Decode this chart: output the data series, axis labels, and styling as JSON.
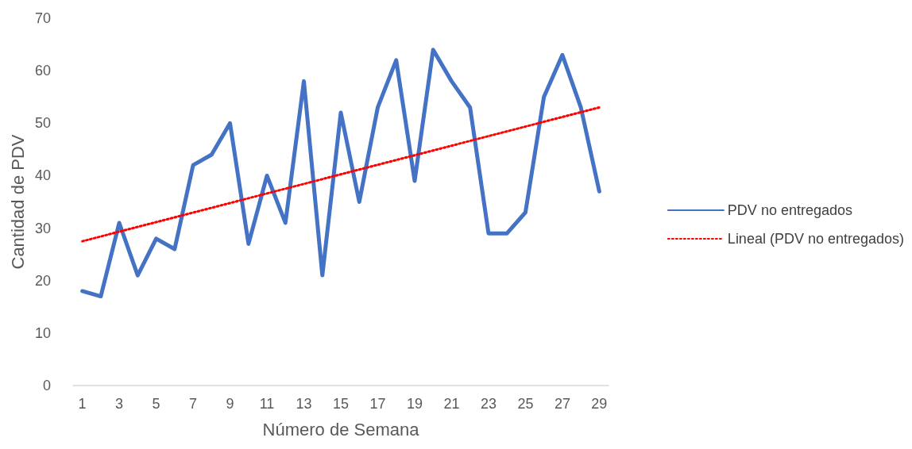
{
  "chart_data": {
    "type": "line",
    "xlabel": "Número de Semana",
    "ylabel": "Cantidad de PDV",
    "x": [
      1,
      2,
      3,
      4,
      5,
      6,
      7,
      8,
      9,
      10,
      11,
      12,
      13,
      14,
      15,
      16,
      17,
      18,
      19,
      20,
      21,
      22,
      23,
      24,
      25,
      26,
      27,
      28,
      29
    ],
    "series": [
      {
        "name": "PDV no entregados",
        "color": "#4472c4",
        "line_style": "solid",
        "values": [
          18,
          17,
          31,
          21,
          28,
          26,
          42,
          44,
          50,
          27,
          40,
          31,
          58,
          21,
          52,
          35,
          53,
          62,
          39,
          64,
          58,
          53,
          29,
          29,
          33,
          55,
          63,
          53,
          37
        ]
      },
      {
        "name": "Lineal (PDV no entregados)",
        "color": "#ff0000",
        "line_style": "dotted",
        "x": [
          1,
          29
        ],
        "values": [
          27.5,
          53
        ]
      }
    ],
    "xlim": [
      0.5,
      29.5
    ],
    "xticks": [
      1,
      3,
      5,
      7,
      9,
      11,
      13,
      15,
      17,
      19,
      21,
      23,
      25,
      27,
      29
    ],
    "ylim": [
      0,
      70
    ],
    "yticks": [
      0,
      10,
      20,
      30,
      40,
      50,
      60,
      70
    ],
    "grid": false,
    "legend": "right",
    "marker": "none"
  }
}
